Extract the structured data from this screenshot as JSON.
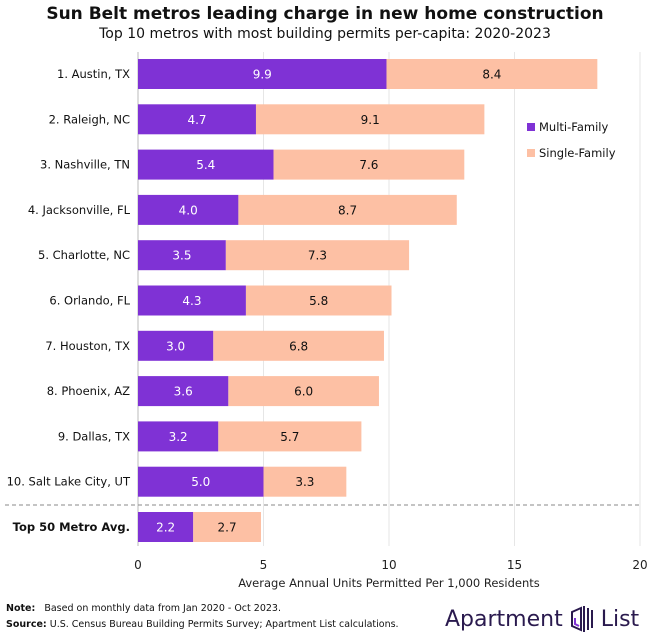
{
  "chart_data": {
    "type": "bar",
    "orientation": "horizontal",
    "stacked": true,
    "title": "Sun Belt metros leading charge in new home construction",
    "subtitle": "Top 10 metros with most building permits per-capita: 2020-2023",
    "xlabel": "Average Annual Units Permitted Per 1,000 Residents",
    "xlim": [
      0,
      20
    ],
    "xticks": [
      0,
      5,
      10,
      15,
      20
    ],
    "grid": "vertical",
    "legend": "right",
    "categories": [
      "1. Austin, TX",
      "2. Raleigh, NC",
      "3. Nashville, TN",
      "4. Jacksonville, FL",
      "5. Charlotte, NC",
      "6. Orlando, FL",
      "7. Houston, TX",
      "8. Phoenix, AZ",
      "9. Dallas, TX",
      "10. Salt Lake City, UT",
      "Top 50 Metro Avg."
    ],
    "series": [
      {
        "name": "Multi-Family",
        "color": "#7f32d5",
        "values": [
          9.9,
          4.7,
          5.4,
          4.0,
          3.5,
          4.3,
          3.0,
          3.6,
          3.2,
          5.0,
          2.2
        ]
      },
      {
        "name": "Single-Family",
        "color": "#fdc0a4",
        "values": [
          8.4,
          9.1,
          7.6,
          8.7,
          7.3,
          5.8,
          6.8,
          6.0,
          5.7,
          3.3,
          2.7
        ]
      }
    ]
  },
  "footer": {
    "note_label": "Note:",
    "note_text": "Based on monthly data from Jan 2020 - Oct 2023.",
    "source_label": "Source:",
    "source_text": "U.S. Census Bureau Building Permits Survey; Apartment List calculations.",
    "logo_text_1": "Apartment",
    "logo_text_2": "List"
  }
}
